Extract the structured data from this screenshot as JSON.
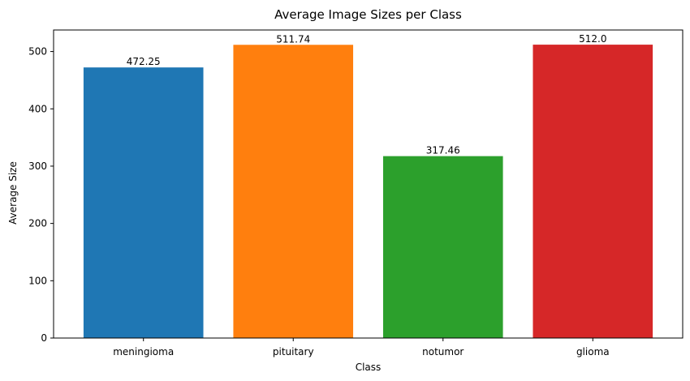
{
  "chart_data": {
    "type": "bar",
    "title": "Average Image Sizes per Class",
    "xlabel": "Class",
    "ylabel": "Average Size",
    "categories": [
      "meningioma",
      "pituitary",
      "notumor",
      "glioma"
    ],
    "values": [
      472.25,
      511.74,
      317.46,
      512.0
    ],
    "value_labels": [
      "472.25",
      "511.74",
      "317.46",
      "512.0"
    ],
    "colors": [
      "#1f77b4",
      "#ff7f0e",
      "#2ca02c",
      "#d62728"
    ],
    "yticks": [
      0,
      100,
      200,
      300,
      400,
      500
    ],
    "ylim": [
      0,
      537.6
    ],
    "grid": false,
    "legend": "none"
  }
}
